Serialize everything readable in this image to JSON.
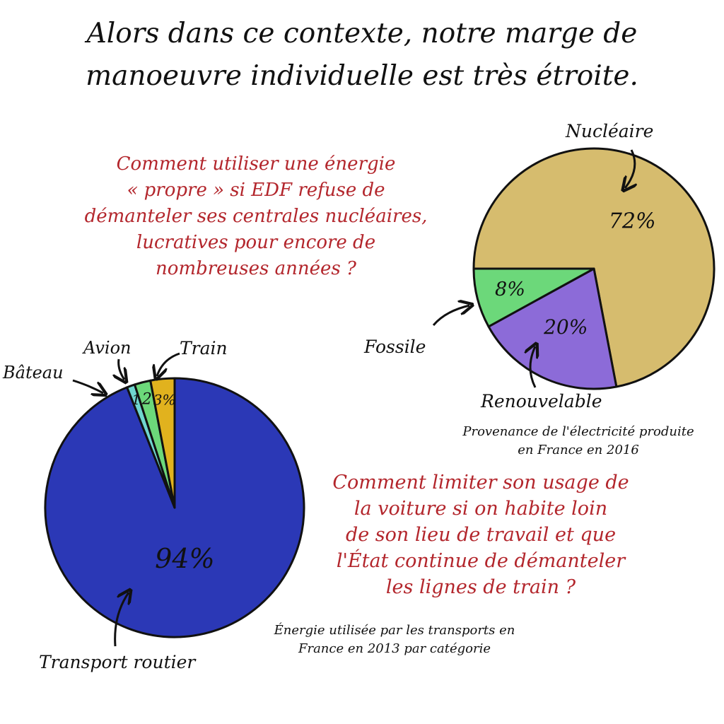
{
  "title_lines": [
    "Alors dans ce contexte, notre marge de",
    "manoeuvre individuelle est très étroite."
  ],
  "question_energy_lines": [
    "Comment utiliser une énergie",
    "« propre » si EDF refuse de",
    "démanteler ses centrales nucléaires,",
    "lucratives pour encore de",
    "nombreuses années ?"
  ],
  "question_transport_lines": [
    "Comment limiter son usage de",
    "la voiture si on habite loin",
    "de son lieu de travail et que",
    "l'État continue de démanteler",
    "les lignes de train ?"
  ],
  "colors": {
    "nucleaire": "#d6bc6e",
    "fossile": "#6cd87a",
    "renouvelable": "#8c6bd8",
    "route": "#2b38b6",
    "bateau": "#6fd6cf",
    "avion": "#6cd87a",
    "train": "#e1b21e",
    "question_red": "#b3262c"
  },
  "chart_data": [
    {
      "type": "pie",
      "caption_lines": [
        "Provenance de l'électricité produite",
        "en France en 2016"
      ],
      "slices": [
        {
          "name": "Nucléaire",
          "value": 72,
          "label": "72%"
        },
        {
          "name": "Renouvelable",
          "value": 20,
          "label": "20%"
        },
        {
          "name": "Fossile",
          "value": 8,
          "label": "8%"
        }
      ]
    },
    {
      "type": "pie",
      "caption_lines": [
        "Énergie utilisée par les transports en",
        "France en 2013 par catégorie"
      ],
      "slices": [
        {
          "name": "Transport routier",
          "value": 94,
          "label": "94%"
        },
        {
          "name": "Bâteau",
          "value": 1,
          "label": "1"
        },
        {
          "name": "Avion",
          "value": 2,
          "label": "2"
        },
        {
          "name": "Train",
          "value": 3,
          "label": "3%"
        }
      ]
    }
  ]
}
